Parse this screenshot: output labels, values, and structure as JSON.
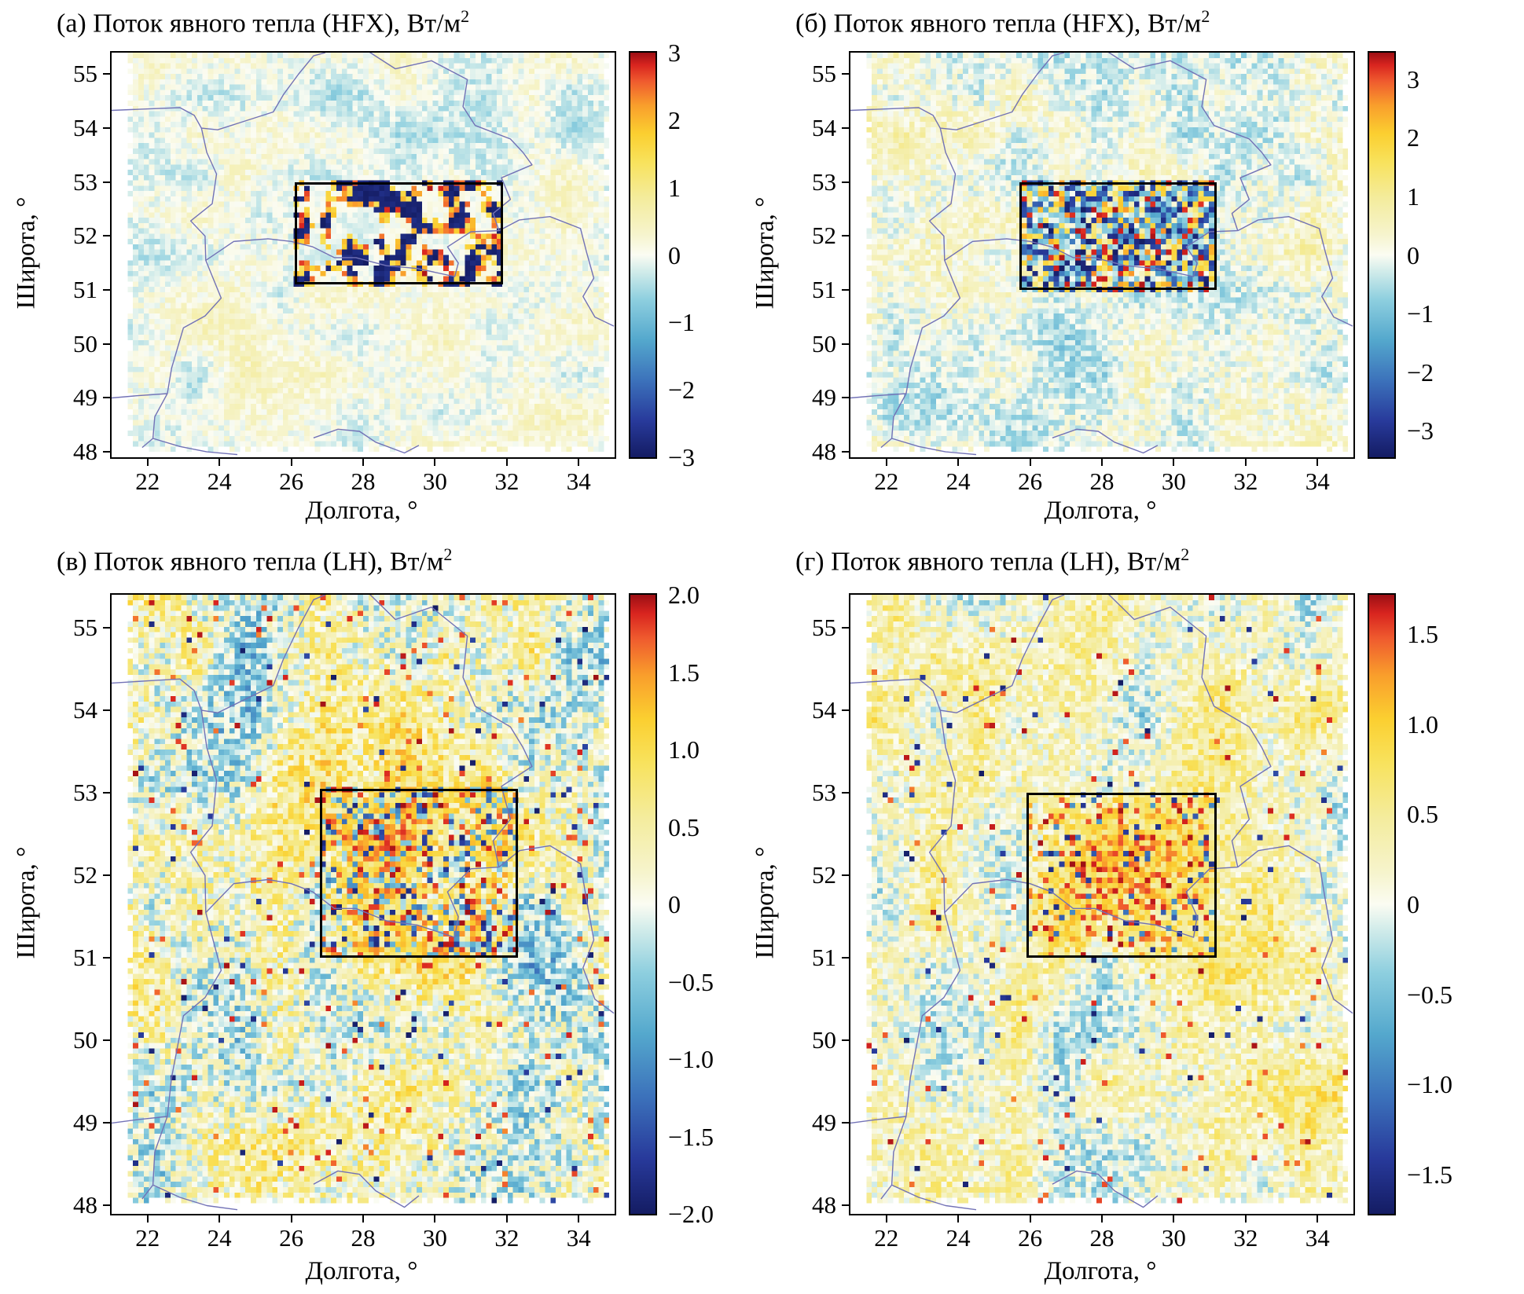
{
  "axis": {
    "xlabel": "Долгота, °",
    "ylabel": "Широта, °",
    "x_range": [
      21,
      35
    ],
    "y_range": [
      47.9,
      55.4
    ],
    "x_ticks": [
      22,
      24,
      26,
      28,
      30,
      32,
      34
    ],
    "y_ticks": [
      48,
      49,
      50,
      51,
      52,
      53,
      54,
      55
    ]
  },
  "border_color": "#7272b6",
  "colormap_stops": [
    {
      "t": -1.0,
      "c": "#141c63"
    },
    {
      "t": -0.82,
      "c": "#283a9b"
    },
    {
      "t": -0.62,
      "c": "#3c72bb"
    },
    {
      "t": -0.42,
      "c": "#54a8cd"
    },
    {
      "t": -0.22,
      "c": "#8ecfdf"
    },
    {
      "t": -0.08,
      "c": "#d2ecea"
    },
    {
      "t": 0.0,
      "c": "#fbfcf2"
    },
    {
      "t": 0.1,
      "c": "#f6f4cd"
    },
    {
      "t": 0.28,
      "c": "#f4ec9d"
    },
    {
      "t": 0.46,
      "c": "#f8e25c"
    },
    {
      "t": 0.6,
      "c": "#fbcf30"
    },
    {
      "t": 0.74,
      "c": "#f99e2c"
    },
    {
      "t": 0.86,
      "c": "#ef5a2e"
    },
    {
      "t": 0.94,
      "c": "#d8241f"
    },
    {
      "t": 1.0,
      "c": "#9c0f14"
    }
  ],
  "borders": [
    [
      [
        21.0,
        54.33
      ],
      [
        22.1,
        54.36
      ],
      [
        22.9,
        54.38
      ],
      [
        23.3,
        54.24
      ],
      [
        23.5,
        54.0
      ],
      [
        23.95,
        53.97
      ],
      [
        24.75,
        54.14
      ],
      [
        25.5,
        54.3
      ],
      [
        25.78,
        54.62
      ],
      [
        26.2,
        55.0
      ],
      [
        26.62,
        55.34
      ],
      [
        26.95,
        55.4
      ]
    ],
    [
      [
        23.5,
        54.0
      ],
      [
        23.65,
        53.55
      ],
      [
        23.92,
        53.15
      ],
      [
        23.8,
        52.6
      ],
      [
        23.2,
        52.28
      ],
      [
        23.6,
        52.0
      ],
      [
        23.62,
        51.55
      ],
      [
        24.05,
        50.85
      ],
      [
        23.6,
        50.52
      ],
      [
        23.0,
        50.3
      ],
      [
        22.67,
        49.55
      ],
      [
        22.55,
        49.08
      ],
      [
        22.2,
        48.65
      ],
      [
        22.15,
        48.25
      ],
      [
        21.85,
        48.08
      ]
    ],
    [
      [
        21.0,
        49.0
      ],
      [
        21.7,
        49.04
      ],
      [
        22.55,
        49.08
      ]
    ],
    [
      [
        22.15,
        48.25
      ],
      [
        22.9,
        48.1
      ],
      [
        23.65,
        48.0
      ],
      [
        24.5,
        47.95
      ]
    ],
    [
      [
        23.62,
        51.55
      ],
      [
        24.4,
        51.9
      ],
      [
        25.35,
        51.95
      ],
      [
        26.0,
        51.9
      ],
      [
        26.6,
        51.8
      ],
      [
        27.2,
        51.6
      ],
      [
        27.8,
        51.6
      ],
      [
        28.65,
        51.45
      ],
      [
        29.5,
        51.4
      ],
      [
        30.55,
        51.25
      ],
      [
        30.65,
        51.5
      ],
      [
        30.35,
        51.8
      ],
      [
        31.0,
        52.08
      ],
      [
        31.78,
        52.1
      ]
    ],
    [
      [
        28.15,
        55.42
      ],
      [
        28.9,
        55.1
      ],
      [
        29.9,
        55.25
      ],
      [
        30.9,
        54.9
      ],
      [
        30.78,
        54.4
      ],
      [
        31.12,
        54.05
      ],
      [
        32.1,
        53.8
      ],
      [
        32.45,
        53.55
      ],
      [
        32.7,
        53.32
      ],
      [
        31.85,
        53.08
      ],
      [
        32.1,
        52.68
      ],
      [
        31.62,
        52.42
      ],
      [
        31.78,
        52.1
      ]
    ],
    [
      [
        31.78,
        52.1
      ],
      [
        32.35,
        52.3
      ],
      [
        33.2,
        52.36
      ],
      [
        34.05,
        52.14
      ],
      [
        34.22,
        51.7
      ],
      [
        34.42,
        51.22
      ],
      [
        34.12,
        50.88
      ],
      [
        34.45,
        50.5
      ],
      [
        34.98,
        50.33
      ]
    ],
    [
      [
        26.62,
        48.26
      ],
      [
        27.3,
        48.42
      ],
      [
        27.9,
        48.38
      ],
      [
        28.35,
        48.18
      ],
      [
        29.15,
        47.98
      ],
      [
        29.55,
        48.12
      ]
    ]
  ],
  "chart_data": [
    {
      "key": "a",
      "type": "heatmap",
      "title": "(а) Поток явного тепла (HFX), Вт/м",
      "title_sup": "2",
      "value_range": [
        -3,
        3
      ],
      "colorbar": {
        "pos_min": -3,
        "pos_max": 3,
        "ticks": [
          {
            "label": "3",
            "value": 3
          },
          {
            "label": "2",
            "value": 2
          },
          {
            "label": "1",
            "value": 1
          },
          {
            "label": "0",
            "value": 0
          },
          {
            "label": "−1",
            "value": -1
          },
          {
            "label": "−2",
            "value": -2
          },
          {
            "label": "−3",
            "value": -3
          }
        ]
      },
      "box": {
        "lon1": 26.1,
        "lat1": 51.1,
        "lon2": 31.9,
        "lat2": 53.0
      },
      "noise": {
        "seed": 101,
        "bias": 0.01,
        "low": 0.15,
        "low2": 0.08,
        "fine": 0.1,
        "red_frac": 0.0,
        "navy_frac": 0.0,
        "box_mode": "bands"
      }
    },
    {
      "key": "b",
      "type": "heatmap",
      "title": "(б) Поток явного тепла (HFX), Вт/м",
      "title_sup": "2",
      "value_range": [
        -3,
        3
      ],
      "colorbar": {
        "pos_min": -3.45,
        "pos_max": 3.45,
        "ticks": [
          {
            "label": "3",
            "value": 3
          },
          {
            "label": "2",
            "value": 2
          },
          {
            "label": "1",
            "value": 1
          },
          {
            "label": "0",
            "value": 0
          },
          {
            "label": "−1",
            "value": -1
          },
          {
            "label": "−2",
            "value": -2
          },
          {
            "label": "−3",
            "value": -3
          }
        ]
      },
      "box": {
        "lon1": 25.7,
        "lat1": 51.0,
        "lon2": 31.2,
        "lat2": 53.0
      },
      "noise": {
        "seed": 202,
        "bias": 0.0,
        "low": 0.18,
        "low2": 0.1,
        "fine": 0.15,
        "red_frac": 0.0,
        "navy_frac": 0.0,
        "box_mode": "speckle"
      }
    },
    {
      "key": "v",
      "type": "heatmap",
      "title": "(в) Поток явного тепла (LH), Вт/м",
      "title_sup": "2",
      "value_range": [
        -2,
        2
      ],
      "colorbar": {
        "pos_min": -2,
        "pos_max": 2,
        "ticks": [
          {
            "label": "2.0",
            "value": 2
          },
          {
            "label": "1.5",
            "value": 1.5
          },
          {
            "label": "1.0",
            "value": 1
          },
          {
            "label": "0.5",
            "value": 0.5
          },
          {
            "label": "0",
            "value": 0
          },
          {
            "label": "−0.5",
            "value": -0.5
          },
          {
            "label": "−1.0",
            "value": -1
          },
          {
            "label": "−1.5",
            "value": -1.5
          },
          {
            "label": "−2.0",
            "value": -2
          }
        ]
      },
      "box": {
        "lon1": 26.8,
        "lat1": 51.0,
        "lon2": 32.3,
        "lat2": 53.05
      },
      "noise": {
        "seed": 303,
        "bias": 0.04,
        "low": 0.3,
        "low2": 0.2,
        "fine": 0.32,
        "red_frac": 0.02,
        "navy_frac": 0.012,
        "box_mode": "mixed_red"
      }
    },
    {
      "key": "g",
      "type": "heatmap",
      "title": "(г) Поток явного тепла (LH), Вт/м",
      "title_sup": "2",
      "value_range": [
        -1.5,
        1.5
      ],
      "colorbar": {
        "pos_min": -1.72,
        "pos_max": 1.72,
        "ticks": [
          {
            "label": "1.5",
            "value": 1.5
          },
          {
            "label": "1.0",
            "value": 1
          },
          {
            "label": "0.5",
            "value": 0.5
          },
          {
            "label": "0",
            "value": 0
          },
          {
            "label": "−0.5",
            "value": -0.5
          },
          {
            "label": "−1.0",
            "value": -1
          },
          {
            "label": "−1.5",
            "value": -1.5
          }
        ]
      },
      "box": {
        "lon1": 25.9,
        "lat1": 51.0,
        "lon2": 31.2,
        "lat2": 53.0
      },
      "noise": {
        "seed": 404,
        "bias": 0.09,
        "low": 0.24,
        "low2": 0.16,
        "fine": 0.24,
        "red_frac": 0.01,
        "navy_frac": 0.008,
        "box_mode": "red_cluster"
      }
    }
  ]
}
